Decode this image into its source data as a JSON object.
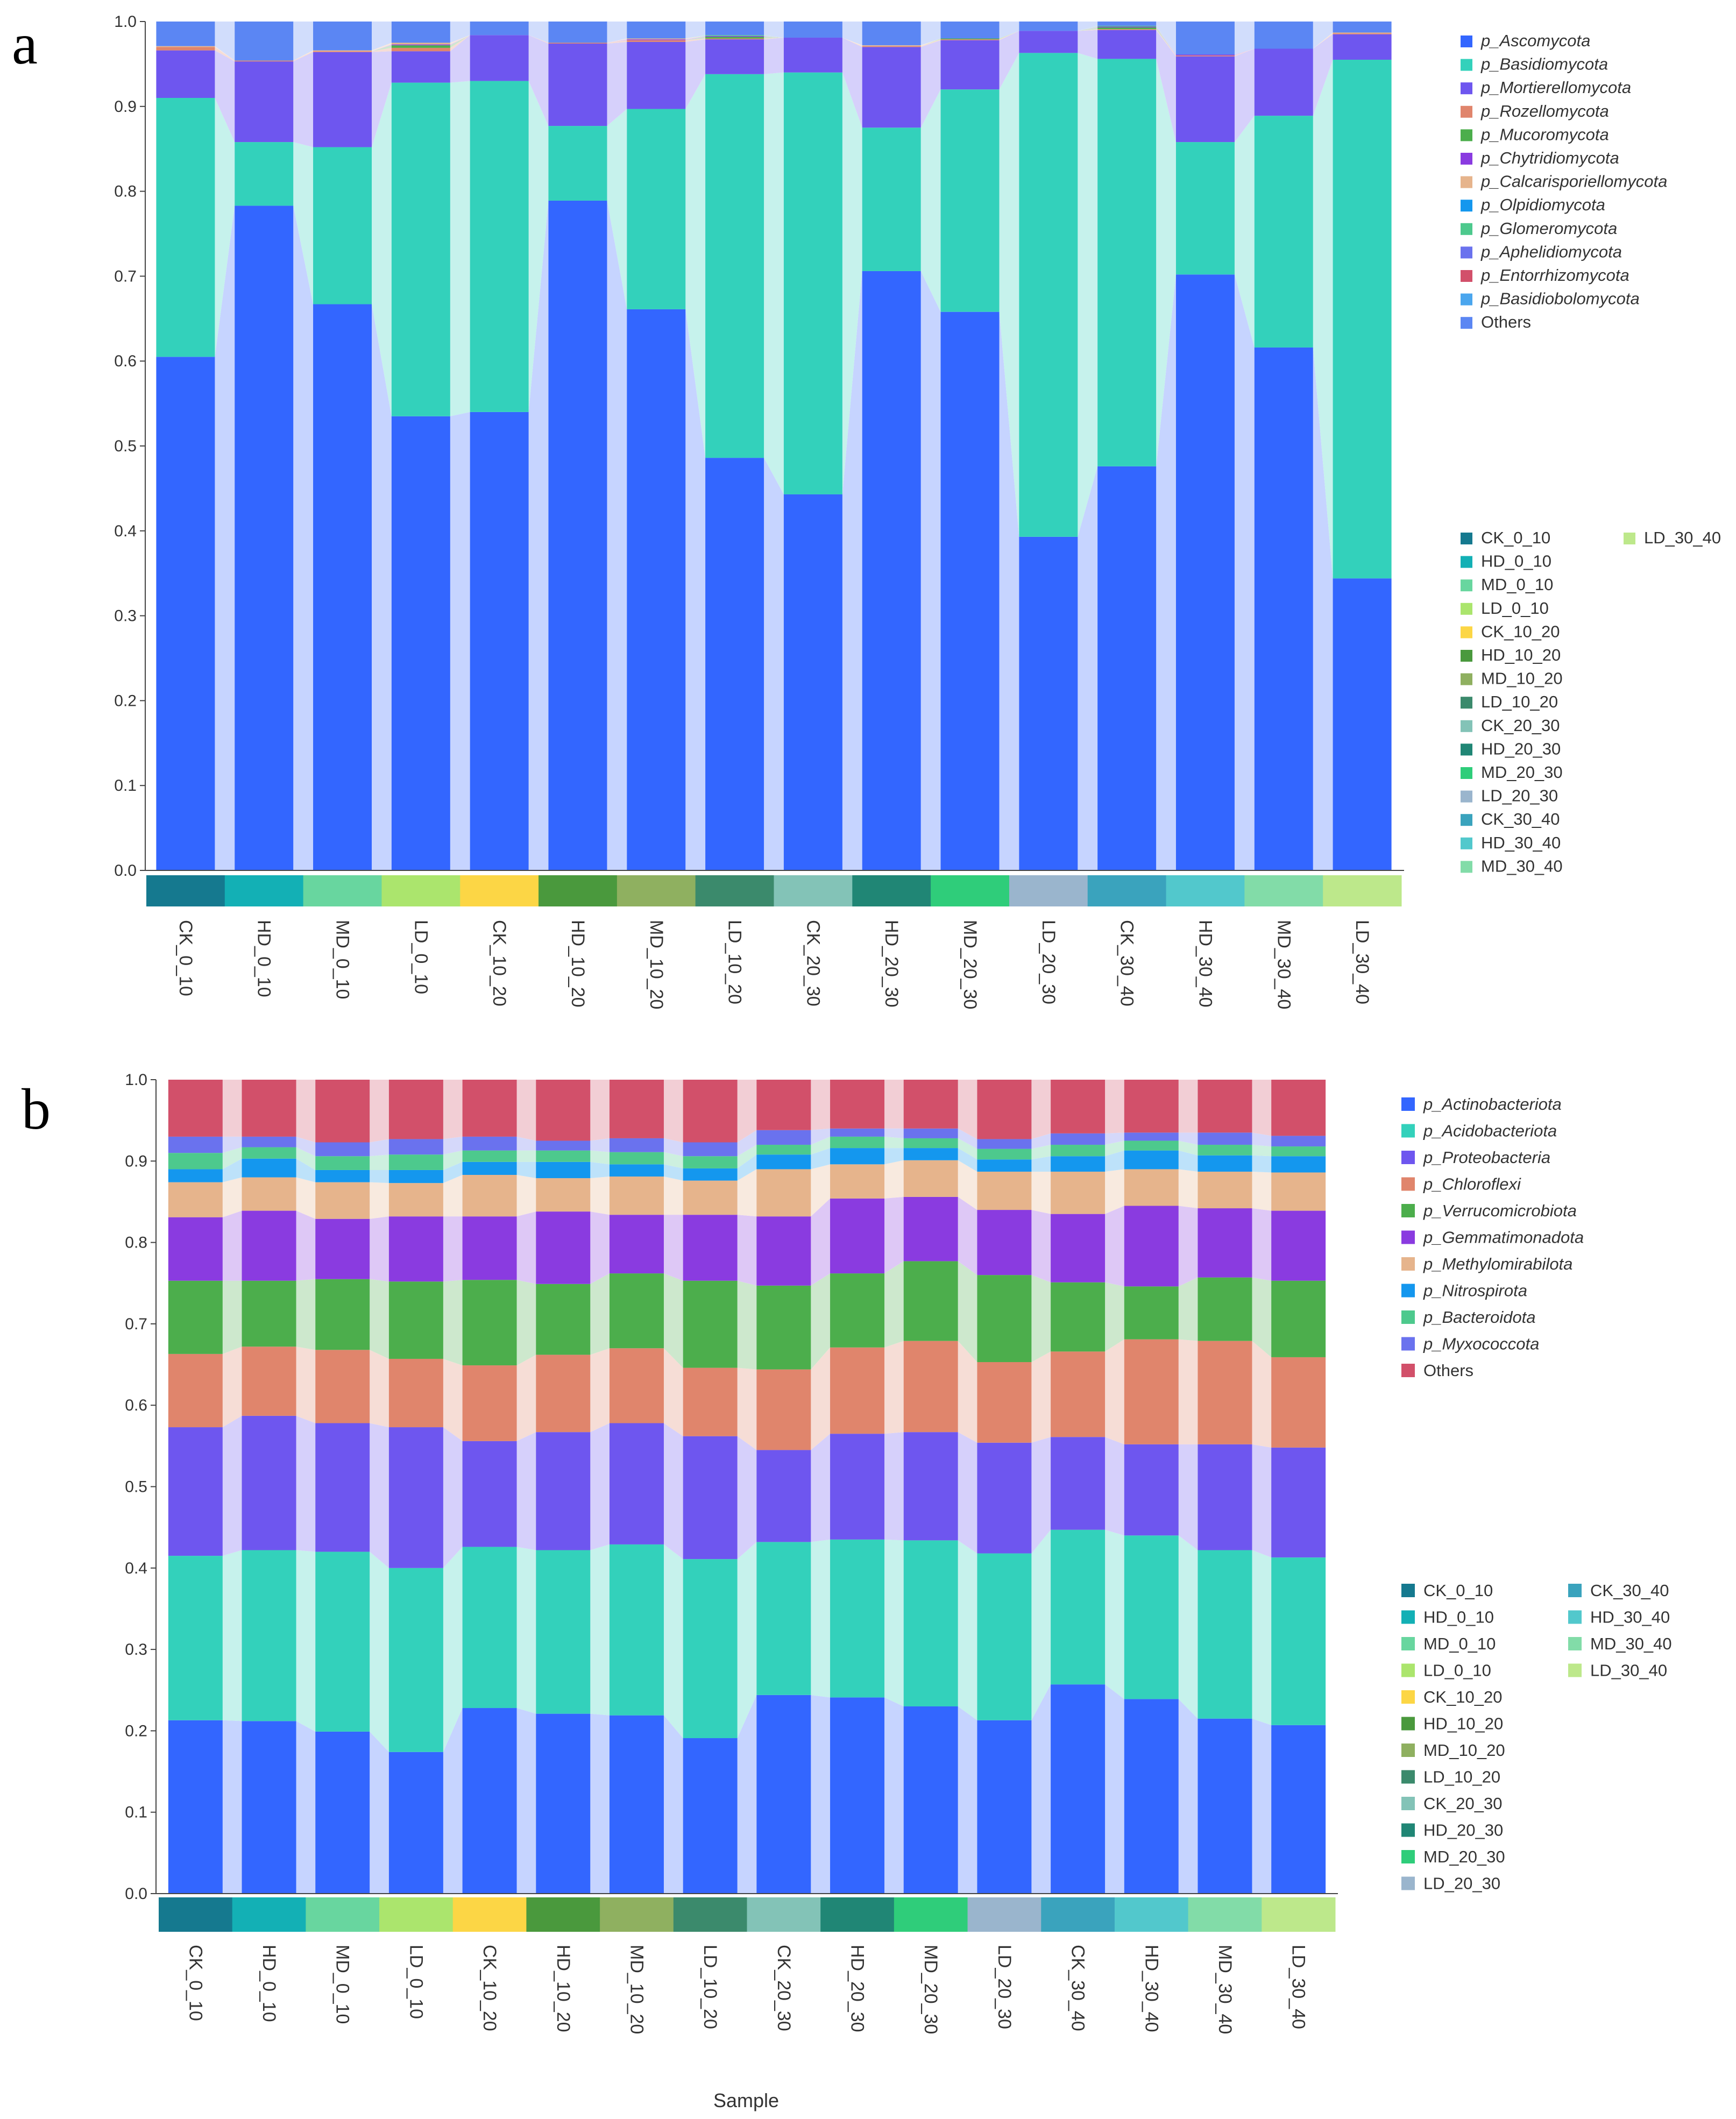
{
  "figure": {
    "x_title": "Sample"
  },
  "samples": [
    "CK_0_10",
    "HD_0_10",
    "MD_0_10",
    "LD_0_10",
    "CK_10_20",
    "HD_10_20",
    "MD_10_20",
    "LD_10_20",
    "CK_20_30",
    "HD_20_30",
    "MD_20_30",
    "LD_20_30",
    "CK_30_40",
    "HD_30_40",
    "MD_30_40",
    "LD_30_40"
  ],
  "sample_colors": [
    "#15798f",
    "#13b0b5",
    "#68d69f",
    "#abe56d",
    "#fcd645",
    "#4a993d",
    "#8fb060",
    "#3b8a6c",
    "#83c3b7",
    "#208675",
    "#2fcd7a",
    "#9ab5cd",
    "#3aa3bd",
    "#52c8cc",
    "#82dca8",
    "#bde88b"
  ],
  "chart_data": [
    {
      "panel": "a",
      "type": "bar",
      "stacked": true,
      "ylim": [
        0,
        1.0
      ],
      "yticks": [
        "0.0",
        "0.1",
        "0.2",
        "0.3",
        "0.4",
        "0.5",
        "0.6",
        "0.7",
        "0.8",
        "0.9",
        "1.0"
      ],
      "xlabel": "",
      "ylabel": "",
      "categories": [
        "CK_0_10",
        "HD_0_10",
        "MD_0_10",
        "LD_0_10",
        "CK_10_20",
        "HD_10_20",
        "MD_10_20",
        "LD_10_20",
        "CK_20_30",
        "HD_20_30",
        "MD_20_30",
        "LD_20_30",
        "CK_30_40",
        "HD_30_40",
        "MD_30_40",
        "LD_30_40"
      ],
      "series": [
        {
          "name": "p_Ascomycota",
          "color": "#3366ff",
          "values": [
            0.605,
            0.783,
            0.667,
            0.535,
            0.54,
            0.789,
            0.661,
            0.486,
            0.443,
            0.706,
            0.658,
            0.393,
            0.476,
            0.702,
            0.616,
            0.344
          ]
        },
        {
          "name": "p_Basidiomycota",
          "color": "#33d1bb",
          "values": [
            0.305,
            0.075,
            0.185,
            0.393,
            0.39,
            0.088,
            0.236,
            0.452,
            0.497,
            0.169,
            0.262,
            0.57,
            0.48,
            0.156,
            0.273,
            0.611
          ]
        },
        {
          "name": "p_Mortierellomycota",
          "color": "#6e56ef",
          "values": [
            0.056,
            0.095,
            0.112,
            0.037,
            0.054,
            0.097,
            0.079,
            0.041,
            0.041,
            0.095,
            0.058,
            0.026,
            0.034,
            0.101,
            0.079,
            0.03
          ]
        },
        {
          "name": "p_Rozellomycota",
          "color": "#e0856c",
          "values": [
            0.004,
            0.001,
            0.001,
            0.004,
            0.0,
            0.001,
            0.002,
            0.001,
            0.0,
            0.001,
            0.001,
            0.0,
            0.001,
            0.001,
            0.0,
            0.001
          ]
        },
        {
          "name": "p_Mucoromycota",
          "color": "#4cae4c",
          "values": [
            0.0,
            0.0,
            0.0,
            0.003,
            0.0,
            0.0,
            0.0,
            0.002,
            0.0,
            0.0,
            0.001,
            0.0,
            0.002,
            0.0,
            0.0,
            0.0
          ]
        },
        {
          "name": "p_Chytridiomycota",
          "color": "#8a3be0",
          "values": [
            0.0,
            0.0,
            0.0,
            0.001,
            0.0,
            0.0,
            0.001,
            0.001,
            0.0,
            0.0,
            0.0,
            0.0,
            0.001,
            0.001,
            0.0,
            0.0
          ]
        },
        {
          "name": "p_Calcarisporiellomycota",
          "color": "#e6b48c",
          "values": [
            0.001,
            0.0,
            0.001,
            0.002,
            0.0,
            0.0,
            0.001,
            0.0,
            0.0,
            0.001,
            0.0,
            0.0,
            0.0,
            0.0,
            0.0,
            0.001
          ]
        },
        {
          "name": "p_Olpidiomycota",
          "color": "#1497ee",
          "values": [
            0.0,
            0.0,
            0.0,
            0.0,
            0.0,
            0.0,
            0.0,
            0.0,
            0.0,
            0.0,
            0.0,
            0.0,
            0.0,
            0.0,
            0.0,
            0.0
          ]
        },
        {
          "name": "p_Glomeromycota",
          "color": "#4dc98d",
          "values": [
            0.0,
            0.0,
            0.0,
            0.0,
            0.0,
            0.0,
            0.0,
            0.001,
            0.0,
            0.0,
            0.0,
            0.0,
            0.001,
            0.0,
            0.0,
            0.0
          ]
        },
        {
          "name": "p_Aphelidiomycota",
          "color": "#6a72ee",
          "values": [
            0.0,
            0.0,
            0.0,
            0.0,
            0.0,
            0.0,
            0.0,
            0.0,
            0.0,
            0.0,
            0.0,
            0.0,
            0.0,
            0.0,
            0.0,
            0.0
          ]
        },
        {
          "name": "p_Entorrhizomycota",
          "color": "#d2506a",
          "values": [
            0.0,
            0.0,
            0.0,
            0.0,
            0.0,
            0.0,
            0.0,
            0.0,
            0.0,
            0.0,
            0.0,
            0.0,
            0.0,
            0.0,
            0.0,
            0.0
          ]
        },
        {
          "name": "p_Basidiobolomycota",
          "color": "#4ba6ee",
          "values": [
            0.0,
            0.0,
            0.0,
            0.0,
            0.0,
            0.0,
            0.0,
            0.0,
            0.0,
            0.0,
            0.0,
            0.0,
            0.0,
            0.0,
            0.0,
            0.0
          ]
        },
        {
          "name": "Others",
          "color": "#5b86f3",
          "values": [
            0.029,
            0.046,
            0.034,
            0.025,
            0.016,
            0.025,
            0.02,
            0.016,
            0.019,
            0.028,
            0.02,
            0.011,
            0.005,
            0.039,
            0.032,
            0.013
          ]
        }
      ]
    },
    {
      "panel": "b",
      "type": "bar",
      "stacked": true,
      "ylim": [
        0,
        1.0
      ],
      "yticks": [
        "0.0",
        "0.1",
        "0.2",
        "0.3",
        "0.4",
        "0.5",
        "0.6",
        "0.7",
        "0.8",
        "0.9",
        "1.0"
      ],
      "xlabel": "Sample",
      "ylabel": "",
      "categories": [
        "CK_0_10",
        "HD_0_10",
        "MD_0_10",
        "LD_0_10",
        "CK_10_20",
        "HD_10_20",
        "MD_10_20",
        "LD_10_20",
        "CK_20_30",
        "HD_20_30",
        "MD_20_30",
        "LD_20_30",
        "CK_30_40",
        "HD_30_40",
        "MD_30_40",
        "LD_30_40"
      ],
      "series": [
        {
          "name": "p_Actinobacteriota",
          "color": "#3366ff",
          "values": [
            0.213,
            0.212,
            0.199,
            0.174,
            0.228,
            0.221,
            0.219,
            0.191,
            0.244,
            0.241,
            0.23,
            0.213,
            0.257,
            0.239,
            0.215,
            0.207
          ]
        },
        {
          "name": "p_Acidobacteriota",
          "color": "#33d1bb",
          "values": [
            0.202,
            0.21,
            0.221,
            0.226,
            0.198,
            0.201,
            0.21,
            0.22,
            0.188,
            0.194,
            0.204,
            0.205,
            0.19,
            0.201,
            0.207,
            0.206
          ]
        },
        {
          "name": "p_Proteobacteria",
          "color": "#6e56ef",
          "values": [
            0.158,
            0.165,
            0.158,
            0.173,
            0.13,
            0.145,
            0.149,
            0.151,
            0.113,
            0.13,
            0.133,
            0.136,
            0.114,
            0.112,
            0.13,
            0.135
          ]
        },
        {
          "name": "p_Chloroflexi",
          "color": "#e0856c",
          "values": [
            0.09,
            0.085,
            0.09,
            0.084,
            0.093,
            0.095,
            0.092,
            0.084,
            0.099,
            0.106,
            0.112,
            0.099,
            0.105,
            0.129,
            0.127,
            0.111
          ]
        },
        {
          "name": "p_Verrucomicrobiota",
          "color": "#4cae4c",
          "values": [
            0.09,
            0.081,
            0.087,
            0.095,
            0.105,
            0.087,
            0.092,
            0.107,
            0.103,
            0.091,
            0.098,
            0.107,
            0.085,
            0.065,
            0.078,
            0.094
          ]
        },
        {
          "name": "p_Gemmatimonadota",
          "color": "#8a3be0",
          "values": [
            0.078,
            0.086,
            0.074,
            0.08,
            0.078,
            0.089,
            0.072,
            0.081,
            0.085,
            0.092,
            0.079,
            0.08,
            0.084,
            0.099,
            0.085,
            0.086
          ]
        },
        {
          "name": "p_Methylomirabilota",
          "color": "#e6b48c",
          "values": [
            0.043,
            0.041,
            0.045,
            0.041,
            0.051,
            0.041,
            0.047,
            0.042,
            0.058,
            0.042,
            0.045,
            0.047,
            0.052,
            0.045,
            0.045,
            0.047
          ]
        },
        {
          "name": "p_Nitrospirota",
          "color": "#1497ee",
          "values": [
            0.016,
            0.023,
            0.015,
            0.016,
            0.016,
            0.02,
            0.015,
            0.015,
            0.018,
            0.02,
            0.015,
            0.015,
            0.019,
            0.023,
            0.02,
            0.02
          ]
        },
        {
          "name": "p_Bacteroidota",
          "color": "#4dc98d",
          "values": [
            0.02,
            0.014,
            0.017,
            0.019,
            0.014,
            0.014,
            0.015,
            0.015,
            0.012,
            0.014,
            0.012,
            0.013,
            0.014,
            0.012,
            0.013,
            0.012
          ]
        },
        {
          "name": "p_Myxococcota",
          "color": "#6a72ee",
          "values": [
            0.02,
            0.013,
            0.017,
            0.019,
            0.017,
            0.012,
            0.017,
            0.017,
            0.018,
            0.01,
            0.012,
            0.012,
            0.014,
            0.01,
            0.015,
            0.013
          ]
        },
        {
          "name": "Others",
          "color": "#d2506a",
          "values": [
            0.07,
            0.07,
            0.077,
            0.073,
            0.07,
            0.075,
            0.072,
            0.077,
            0.062,
            0.06,
            0.06,
            0.073,
            0.066,
            0.065,
            0.065,
            0.069
          ]
        }
      ]
    }
  ]
}
